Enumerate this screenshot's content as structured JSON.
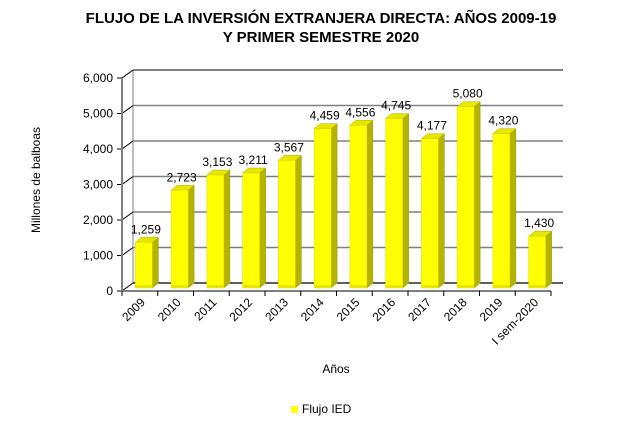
{
  "chart_data": {
    "type": "bar",
    "style": "3d-column",
    "title_lines": [
      "FLUJO DE LA INVERSIÓN EXTRANJERA DIRECTA: AÑOS 2009-19",
      "Y PRIMER SEMESTRE 2020"
    ],
    "xlabel": "Años",
    "ylabel": "Millones de balboas",
    "categories": [
      "2009",
      "2010",
      "2011",
      "2012",
      "2013",
      "2014",
      "2015",
      "2016",
      "2017",
      "2018",
      "2019",
      "I sem-2020"
    ],
    "series": [
      {
        "name": "Flujo IED",
        "color": "#ffff00",
        "values": [
          1259,
          2723,
          3153,
          3211,
          3567,
          4459,
          4556,
          4745,
          4177,
          5080,
          4320,
          1430
        ],
        "data_labels": [
          "1,259",
          "2,723",
          "3,153",
          "3,211",
          "3,567",
          "4,459",
          "4,556",
          "4,745",
          "4,177",
          "5,080",
          "4,320",
          "1,430"
        ]
      }
    ],
    "ylim": [
      0,
      6000
    ],
    "yticks": [
      0,
      1000,
      2000,
      3000,
      4000,
      5000,
      6000
    ],
    "ytick_labels": [
      "0",
      "1,000",
      "2,000",
      "3,000",
      "4,000",
      "5,000",
      "6,000"
    ],
    "grid": true,
    "legend": {
      "position": "bottom",
      "entries": [
        "Flujo IED"
      ]
    }
  }
}
